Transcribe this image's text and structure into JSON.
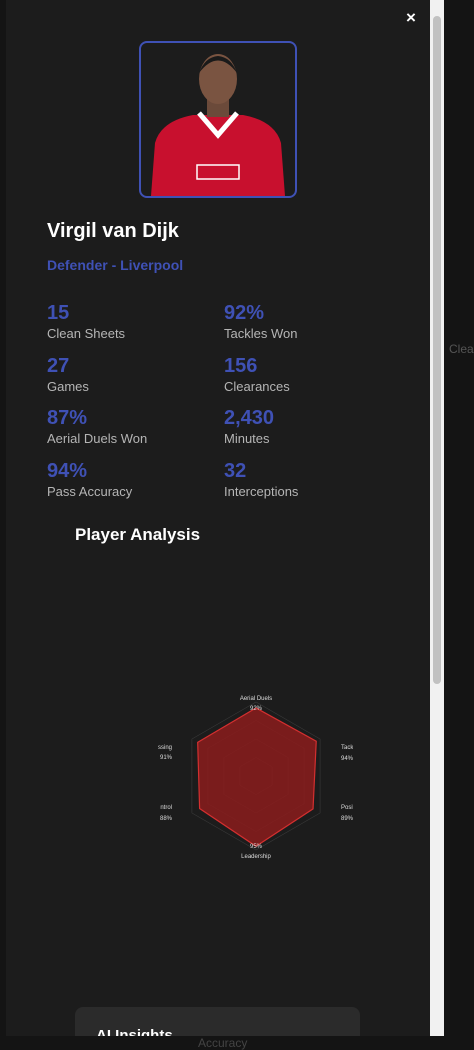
{
  "close_button": "×",
  "player": {
    "name": "Virgil van Dijk",
    "role": "Defender - Liverpool"
  },
  "stats": [
    {
      "value": "15",
      "label": "Clean Sheets"
    },
    {
      "value": "92%",
      "label": "Tackles Won"
    },
    {
      "value": "27",
      "label": "Games"
    },
    {
      "value": "156",
      "label": "Clearances"
    },
    {
      "value": "87%",
      "label": "Aerial Duels Won"
    },
    {
      "value": "2,430",
      "label": "Minutes"
    },
    {
      "value": "94%",
      "label": "Pass Accuracy"
    },
    {
      "value": "32",
      "label": "Interceptions"
    }
  ],
  "analysis_title": "Player Analysis",
  "chart_data": {
    "type": "radar",
    "categories": [
      "Aerial Duels",
      "Tackl",
      "Posit",
      "Leadership",
      "ntrol",
      "ssing"
    ],
    "values": [
      92,
      94,
      89,
      95,
      88,
      91
    ],
    "value_labels": [
      "92%",
      "94%",
      "89%",
      "95%",
      "88%",
      "91%"
    ],
    "rlim": [
      0,
      100
    ],
    "color": "#8b1c1c"
  },
  "insights_title": "AI Insights",
  "background_fragments": [
    "Clea",
    "Accuracy"
  ]
}
